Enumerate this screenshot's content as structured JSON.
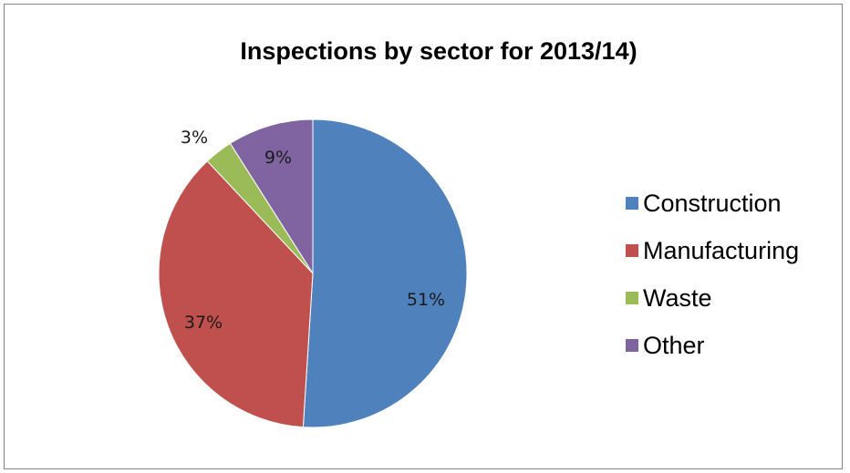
{
  "chart_data": {
    "type": "pie",
    "title": "Inspections by sector for 2013/14)",
    "slices": [
      {
        "label": "Construction",
        "value": 51,
        "display": "51%",
        "color": "#4F81BD"
      },
      {
        "label": "Manufacturing",
        "value": 37,
        "display": "37%",
        "color": "#C0504D"
      },
      {
        "label": "Waste",
        "value": 3,
        "display": "3%",
        "color": "#9BBB59"
      },
      {
        "label": "Other",
        "value": 9,
        "display": "9%",
        "color": "#8064A2"
      }
    ],
    "start_angle_deg": 0,
    "direction": "clockwise",
    "legend_position": "right"
  }
}
